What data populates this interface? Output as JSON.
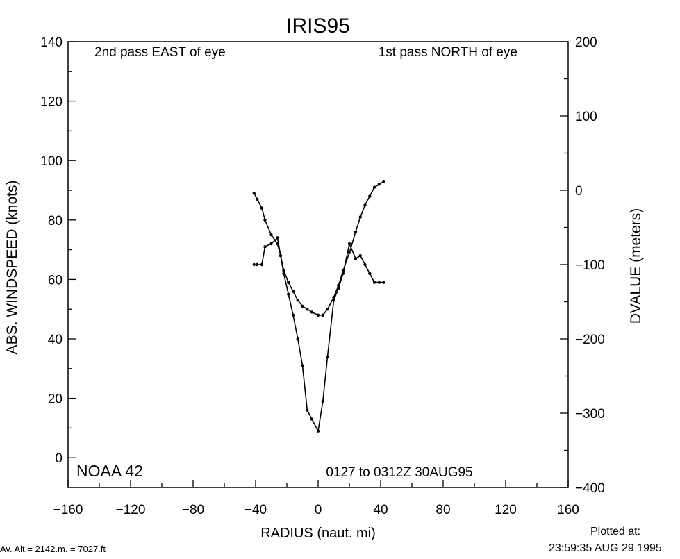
{
  "chart_data": {
    "type": "line",
    "title": "IRIS95",
    "xlabel": "RADIUS (naut. mi)",
    "ylabel": "ABS. WINDSPEED (knots)",
    "y2label": "DVALUE (meters)",
    "xlim": [
      -160,
      160
    ],
    "ylim": [
      -10,
      140
    ],
    "y2lim": [
      -400,
      200
    ],
    "xticks": [
      -160,
      -120,
      -80,
      -40,
      0,
      40,
      80,
      120,
      160
    ],
    "yticks": [
      0,
      20,
      40,
      60,
      80,
      100,
      120,
      140
    ],
    "y2ticks": [
      -400,
      -300,
      -200,
      -100,
      0,
      100,
      200
    ],
    "xtick_labels": [
      "−160",
      "−120",
      "−80",
      "−40",
      "0",
      "40",
      "80",
      "120",
      "160"
    ],
    "ytick_labels": [
      "0",
      "20",
      "40",
      "60",
      "80",
      "100",
      "120",
      "140"
    ],
    "y2tick_labels": [
      "−400",
      "−300",
      "−200",
      "−100",
      "0",
      "100",
      "200"
    ],
    "grid": false,
    "annotations": {
      "top_left": "2nd pass EAST of eye",
      "top_right": "1st pass NORTH of eye",
      "bottom_left": "NOAA 42",
      "bottom_right": "0127 to 0312Z 30AUG95"
    },
    "series": [
      {
        "axis": "left",
        "x": [
          -41,
          -39,
          -36,
          -34,
          -30,
          -26,
          -24,
          -22,
          -19,
          -16,
          -13,
          -10,
          -7,
          -4,
          0,
          3,
          6,
          10,
          13,
          16,
          20,
          24,
          27,
          30,
          33,
          36,
          39,
          42
        ],
        "y": [
          89,
          87,
          84,
          80,
          75,
          72,
          68,
          63,
          59,
          56,
          53,
          51,
          50,
          49,
          48,
          48,
          50,
          54,
          58,
          63,
          69,
          76,
          81,
          85,
          88,
          91,
          92,
          93
        ]
      },
      {
        "axis": "left",
        "x": [
          -41,
          -39,
          -36,
          -34,
          -30,
          -26,
          -24,
          -22,
          -19,
          -16,
          -13,
          -10,
          -7,
          -4,
          0,
          3,
          6,
          10,
          13,
          16,
          20,
          24,
          27,
          30,
          33,
          36,
          39,
          42
        ],
        "y": [
          65,
          65,
          65,
          71,
          72,
          74,
          68,
          62,
          55,
          48,
          40,
          31,
          16,
          13,
          9,
          19,
          34,
          53,
          57,
          62,
          72,
          67,
          68,
          65,
          62,
          59,
          59,
          59
        ]
      }
    ]
  },
  "footer": {
    "alt": "Av. Alt.= 2142.m. =  7027.ft",
    "plotted_label": "Plotted at:",
    "plotted_time": "23:59:35 AUG 29 1995"
  }
}
